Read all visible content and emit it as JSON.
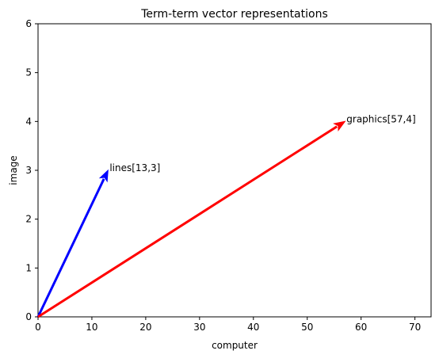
{
  "chart_data": {
    "type": "quiver",
    "title": "Term-term vector representations",
    "xlabel": "computer",
    "ylabel": "image",
    "xlim": [
      0,
      73
    ],
    "ylim": [
      0,
      6
    ],
    "xticks": [
      0,
      10,
      20,
      30,
      40,
      50,
      60,
      70
    ],
    "yticks": [
      0,
      1,
      2,
      3,
      4,
      5,
      6
    ],
    "grid": false,
    "series": [
      {
        "label": "lines[13,3]",
        "x0": 0,
        "y0": 0,
        "x": 13,
        "y": 3,
        "color": "#0000ff"
      },
      {
        "label": "graphics[57,4]",
        "x0": 0,
        "y0": 0,
        "x": 57,
        "y": 4,
        "color": "#ff0000"
      }
    ]
  }
}
